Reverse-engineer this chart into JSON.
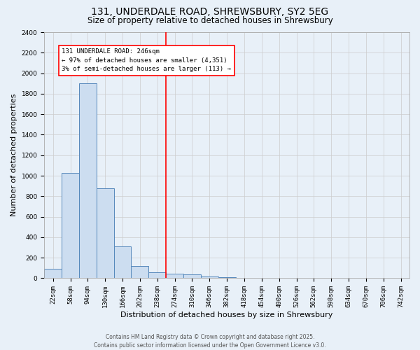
{
  "title_line1": "131, UNDERDALE ROAD, SHREWSBURY, SY2 5EG",
  "title_line2": "Size of property relative to detached houses in Shrewsbury",
  "xlabel": "Distribution of detached houses by size in Shrewsbury",
  "ylabel": "Number of detached properties",
  "footer_line1": "Contains HM Land Registry data © Crown copyright and database right 2025.",
  "footer_line2": "Contains public sector information licensed under the Open Government Licence v3.0.",
  "bin_labels": [
    "22sqm",
    "58sqm",
    "94sqm",
    "130sqm",
    "166sqm",
    "202sqm",
    "238sqm",
    "274sqm",
    "310sqm",
    "346sqm",
    "382sqm",
    "418sqm",
    "454sqm",
    "490sqm",
    "526sqm",
    "562sqm",
    "598sqm",
    "634sqm",
    "670sqm",
    "706sqm",
    "742sqm"
  ],
  "bar_values": [
    90,
    1030,
    1900,
    880,
    310,
    120,
    60,
    45,
    35,
    20,
    10,
    0,
    0,
    0,
    0,
    0,
    0,
    0,
    0,
    0,
    0
  ],
  "bar_color": "#ccddf0",
  "bar_edge_color": "#5588bb",
  "ylim": [
    0,
    2400
  ],
  "yticks": [
    0,
    200,
    400,
    600,
    800,
    1000,
    1200,
    1400,
    1600,
    1800,
    2000,
    2200,
    2400
  ],
  "property_line_x": 6.5,
  "annotation_text_line1": "131 UNDERDALE ROAD: 246sqm",
  "annotation_text_line2": "← 97% of detached houses are smaller (4,351)",
  "annotation_text_line3": "3% of semi-detached houses are larger (113) →",
  "grid_color": "#cccccc",
  "background_color": "#e8f0f8",
  "title_fontsize": 10,
  "subtitle_fontsize": 8.5,
  "axis_label_fontsize": 8,
  "tick_fontsize": 6.5,
  "annotation_fontsize": 6.5,
  "footer_fontsize": 5.5
}
